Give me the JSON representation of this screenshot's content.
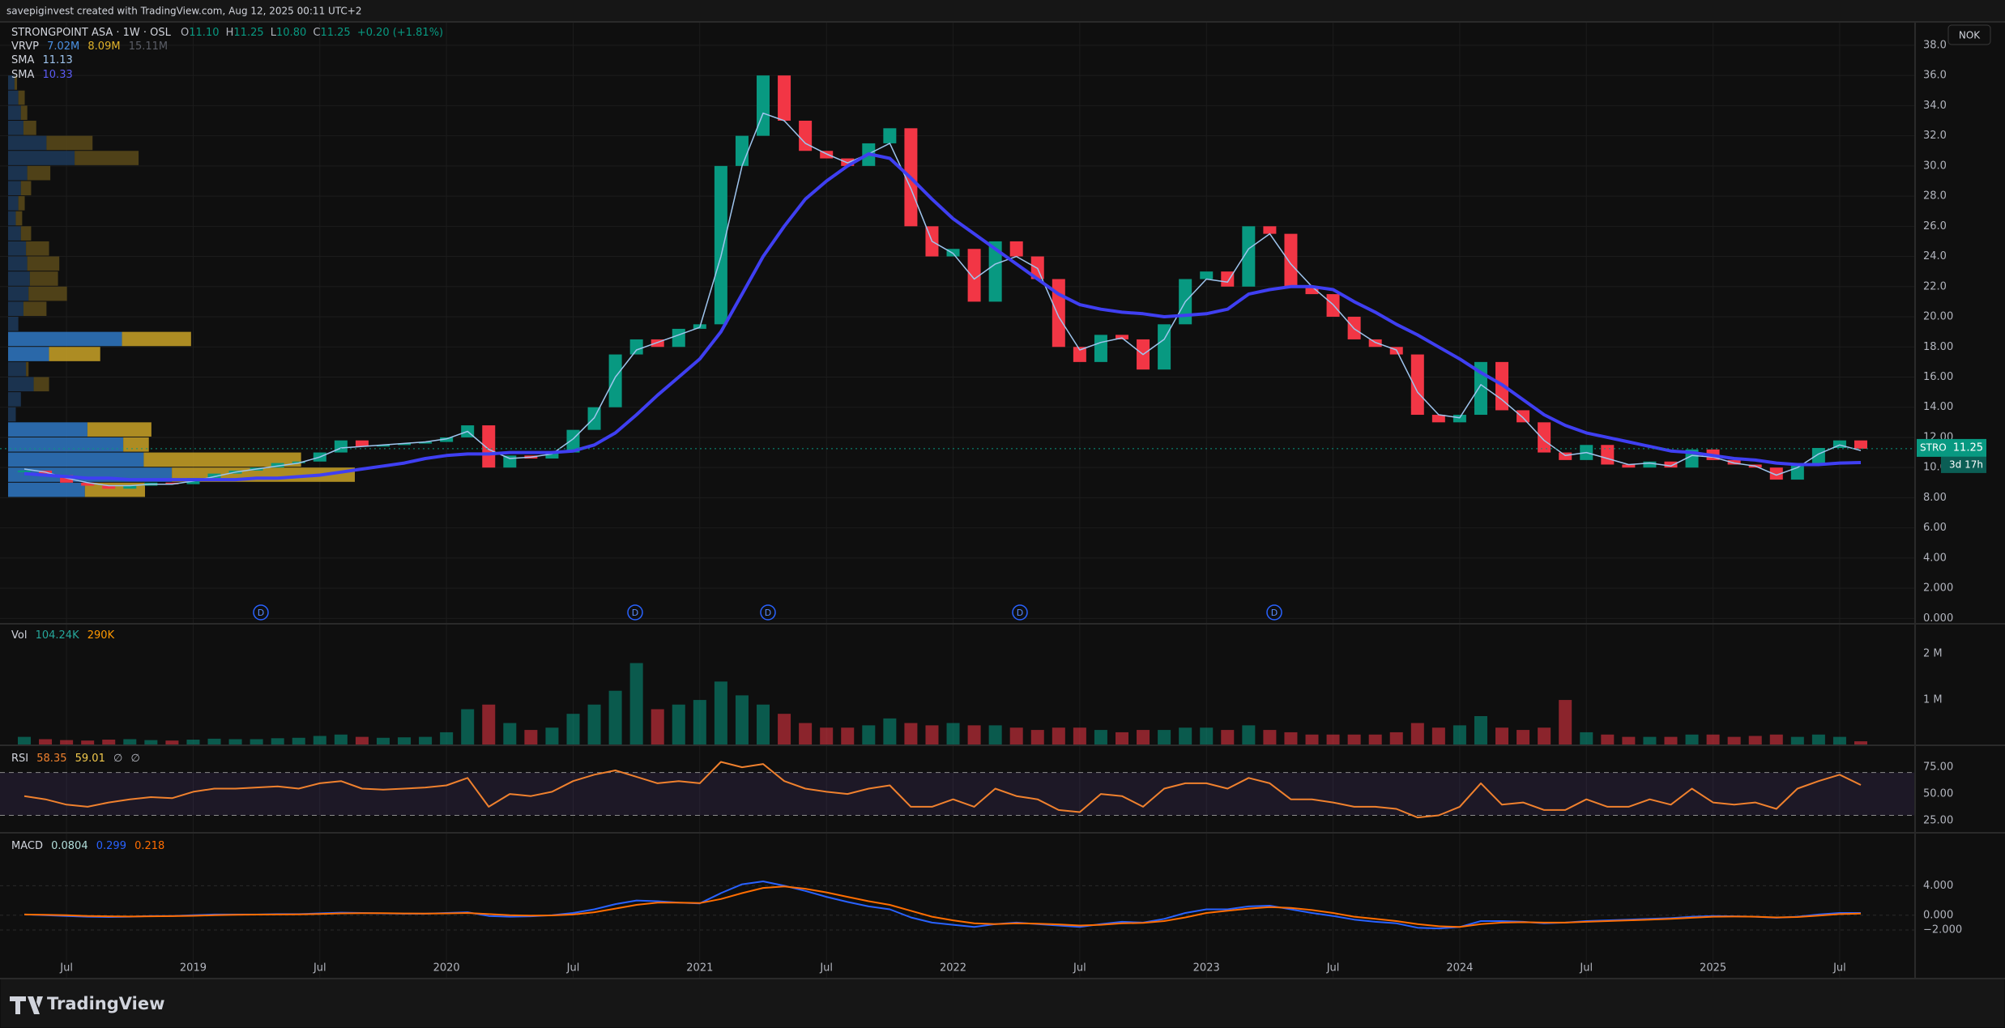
{
  "header": {
    "caption": "savepiginvest created with TradingView.com, Aug 12, 2025 00:11 UTC+2",
    "currency": "NOK"
  },
  "footer": {
    "brand": "TradingView"
  },
  "chart_data": [
    {
      "type": "candlestick",
      "title": "STRONGPOINT ASA · 1W · OSL",
      "symbol": "STRO",
      "countdown": "3d 17h",
      "ohlc": [
        {
          "label": "O",
          "value": "11.10"
        },
        {
          "label": "H",
          "value": "11.25"
        },
        {
          "label": "L",
          "value": "10.80"
        },
        {
          "label": "C",
          "value": "11.25"
        }
      ],
      "change": "+0.20 (+1.81%)",
      "up_color": "#089981",
      "down_color": "#f23645",
      "grid": true,
      "x": [
        "2018-05",
        "2018-06",
        "2018-07",
        "2018-08",
        "2018-09",
        "2018-10",
        "2018-11",
        "2018-12",
        "2019-01",
        "2019-02",
        "2019-03",
        "2019-04",
        "2019-05",
        "2019-06",
        "2019-07",
        "2019-08",
        "2019-09",
        "2019-10",
        "2019-11",
        "2019-12",
        "2020-01",
        "2020-02",
        "2020-03",
        "2020-04",
        "2020-05",
        "2020-06",
        "2020-07",
        "2020-08",
        "2020-09",
        "2020-10",
        "2020-11",
        "2020-12",
        "2021-01",
        "2021-02",
        "2021-03",
        "2021-04",
        "2021-05",
        "2021-06",
        "2021-07",
        "2021-08",
        "2021-09",
        "2021-10",
        "2021-11",
        "2021-12",
        "2022-01",
        "2022-02",
        "2022-03",
        "2022-04",
        "2022-05",
        "2022-06",
        "2022-07",
        "2022-08",
        "2022-09",
        "2022-10",
        "2022-11",
        "2022-12",
        "2023-01",
        "2023-02",
        "2023-03",
        "2023-04",
        "2023-05",
        "2023-06",
        "2023-07",
        "2023-08",
        "2023-09",
        "2023-10",
        "2023-11",
        "2023-12",
        "2024-01",
        "2024-02",
        "2024-03",
        "2024-04",
        "2024-05",
        "2024-06",
        "2024-07",
        "2024-08",
        "2024-09",
        "2024-10",
        "2024-11",
        "2024-12",
        "2025-01",
        "2025-02",
        "2025-03",
        "2025-04",
        "2025-05",
        "2025-06",
        "2025-07",
        "2025-08"
      ],
      "values": [
        9.8,
        9.5,
        9.0,
        8.8,
        8.6,
        8.8,
        9.0,
        8.9,
        9.3,
        9.6,
        9.8,
        10.0,
        10.3,
        10.4,
        11.0,
        11.8,
        11.4,
        11.5,
        11.6,
        11.7,
        12.0,
        12.8,
        10.0,
        10.8,
        10.6,
        11.0,
        12.5,
        14.0,
        17.5,
        18.5,
        18.0,
        19.2,
        19.5,
        30.0,
        32.0,
        36.0,
        33.0,
        31.0,
        30.5,
        30.0,
        31.5,
        32.5,
        26.0,
        24.0,
        24.5,
        21.0,
        25.0,
        24.0,
        22.5,
        18.0,
        17.0,
        18.8,
        18.5,
        16.5,
        19.5,
        22.5,
        23.0,
        22.0,
        26.0,
        25.5,
        22.0,
        21.5,
        20.0,
        18.5,
        18.0,
        17.5,
        13.5,
        13.0,
        13.5,
        17.0,
        13.8,
        13.0,
        11.0,
        10.5,
        11.5,
        10.2,
        10.0,
        10.4,
        10.0,
        11.2,
        10.5,
        10.2,
        10.0,
        9.2,
        10.3,
        11.3,
        11.8,
        11.25
      ],
      "series": [
        {
          "name": "SMA",
          "color": "#9fc5ee",
          "width": 1.5,
          "values": [
            9.9,
            9.7,
            9.3,
            9.0,
            8.8,
            8.8,
            8.9,
            8.9,
            9.1,
            9.4,
            9.7,
            9.9,
            10.1,
            10.3,
            10.7,
            11.3,
            11.4,
            11.5,
            11.6,
            11.7,
            11.9,
            12.4,
            11.2,
            10.6,
            10.7,
            10.9,
            11.9,
            13.3,
            16.0,
            17.8,
            18.3,
            18.8,
            19.3,
            24.0,
            30.0,
            33.5,
            33.0,
            31.5,
            30.8,
            30.2,
            30.8,
            31.5,
            28.5,
            25.0,
            24.2,
            22.5,
            23.5,
            24.0,
            23.2,
            20.0,
            17.8,
            18.3,
            18.6,
            17.5,
            18.5,
            21.0,
            22.5,
            22.3,
            24.5,
            25.5,
            23.5,
            22.0,
            20.8,
            19.2,
            18.3,
            17.8,
            15.0,
            13.5,
            13.3,
            15.5,
            14.5,
            13.3,
            11.8,
            10.8,
            11.0,
            10.6,
            10.2,
            10.3,
            10.1,
            10.8,
            10.7,
            10.3,
            10.1,
            9.5,
            10.0,
            10.9,
            11.5,
            11.13
          ]
        },
        {
          "name": "SMA",
          "color": "#3f3ff2",
          "width": 4,
          "values": [
            9.6,
            9.5,
            9.4,
            9.3,
            9.3,
            9.2,
            9.2,
            9.2,
            9.2,
            9.2,
            9.2,
            9.3,
            9.3,
            9.4,
            9.5,
            9.7,
            9.9,
            10.1,
            10.3,
            10.6,
            10.8,
            10.9,
            10.9,
            11.0,
            11.0,
            11.0,
            11.1,
            11.5,
            12.3,
            13.5,
            14.8,
            16.0,
            17.2,
            19.0,
            21.5,
            24.0,
            26.0,
            27.8,
            29.0,
            30.0,
            30.8,
            30.5,
            29.2,
            27.8,
            26.5,
            25.5,
            24.5,
            23.5,
            22.5,
            21.5,
            20.8,
            20.5,
            20.3,
            20.2,
            20.0,
            20.1,
            20.2,
            20.5,
            21.5,
            21.8,
            22.0,
            22.0,
            21.8,
            21.0,
            20.3,
            19.5,
            18.8,
            18.0,
            17.2,
            16.3,
            15.5,
            14.5,
            13.5,
            12.8,
            12.3,
            12.0,
            11.7,
            11.4,
            11.1,
            11.0,
            10.8,
            10.6,
            10.5,
            10.3,
            10.2,
            10.2,
            10.3,
            10.33
          ]
        }
      ],
      "ylim": [
        -0.25,
        39.5
      ],
      "yticks": [
        {
          "value": 38,
          "label": "38.0"
        },
        {
          "value": 36,
          "label": "36.0"
        },
        {
          "value": 34,
          "label": "34.0"
        },
        {
          "value": 32,
          "label": "32.0"
        },
        {
          "value": 30,
          "label": "30.0"
        },
        {
          "value": 28,
          "label": "28.0"
        },
        {
          "value": 26,
          "label": "26.0"
        },
        {
          "value": 24,
          "label": "24.0"
        },
        {
          "value": 22,
          "label": "22.0"
        },
        {
          "value": 20,
          "label": "20.00"
        },
        {
          "value": 18,
          "label": "18.00"
        },
        {
          "value": 16,
          "label": "16.00"
        },
        {
          "value": 14,
          "label": "14.00"
        },
        {
          "value": 12,
          "label": "12.00"
        },
        {
          "value": 10,
          "label": "10.00"
        },
        {
          "value": 8,
          "label": "8.00"
        },
        {
          "value": 6,
          "label": "6.00"
        },
        {
          "value": 4,
          "label": "4.00"
        },
        {
          "value": 2,
          "label": "2.000"
        },
        {
          "value": 0,
          "label": "0.000"
        }
      ],
      "xticks": [
        {
          "value": "2018-07",
          "label": "Jul"
        },
        {
          "value": "2019-01",
          "label": "2019"
        },
        {
          "value": "2019-07",
          "label": "Jul"
        },
        {
          "value": "2020-01",
          "label": "2020"
        },
        {
          "value": "2020-07",
          "label": "Jul"
        },
        {
          "value": "2021-01",
          "label": "2021"
        },
        {
          "value": "2021-07",
          "label": "Jul"
        },
        {
          "value": "2022-01",
          "label": "2022"
        },
        {
          "value": "2022-07",
          "label": "Jul"
        },
        {
          "value": "2023-01",
          "label": "2023"
        },
        {
          "value": "2023-07",
          "label": "Jul"
        },
        {
          "value": "2024-01",
          "label": "2024"
        },
        {
          "value": "2024-07",
          "label": "Jul"
        },
        {
          "value": "2025-01",
          "label": "2025"
        },
        {
          "value": "2025-07",
          "label": "Jul"
        }
      ],
      "dividends": [
        "D",
        "D",
        "D",
        "D",
        "D"
      ],
      "volume_profile": {
        "name": "VRVP",
        "totals": [
          "7.02M",
          "8.09M",
          "15.11M"
        ],
        "up_color": "#2f78c4",
        "down_color": "#c9a227",
        "up_dim": "#1d3a5a",
        "down_dim": "#5a4a1a",
        "prices": [
          8,
          9,
          10,
          11,
          12,
          13,
          14,
          15,
          16,
          17,
          18,
          19,
          20,
          21,
          22,
          23,
          24,
          25,
          26,
          27,
          28,
          29,
          30,
          31,
          32,
          33,
          34,
          35
        ],
        "up": [
          480,
          1024,
          848,
          720,
          496,
          48,
          80,
          160,
          112,
          256,
          712,
          64,
          96,
          128,
          136,
          120,
          112,
          80,
          48,
          64,
          80,
          120,
          416,
          240,
          96,
          80,
          64,
          40
        ],
        "down": [
          376,
          1144,
          984,
          160,
          400,
          0,
          0,
          96,
          16,
          320,
          432,
          0,
          144,
          240,
          176,
          200,
          144,
          64,
          40,
          40,
          64,
          144,
          400,
          288,
          80,
          40,
          40,
          16
        ],
        "highlight": [
          true,
          true,
          true,
          true,
          true,
          false,
          false,
          false,
          false,
          true,
          true,
          false,
          false,
          false,
          false,
          false,
          false,
          false,
          false,
          false,
          false,
          false,
          false,
          false,
          false,
          false,
          false,
          false
        ]
      }
    },
    {
      "type": "bar",
      "name": "Vol",
      "legend_values": [
        "104.24K",
        "290K"
      ],
      "values": [
        200000,
        150000,
        130000,
        120000,
        140000,
        150000,
        130000,
        120000,
        140000,
        160000,
        150000,
        150000,
        170000,
        180000,
        220000,
        250000,
        200000,
        180000,
        190000,
        200000,
        300000,
        800000,
        900000,
        500000,
        350000,
        400000,
        700000,
        900000,
        1200000,
        1800000,
        800000,
        900000,
        1000000,
        1400000,
        1100000,
        900000,
        700000,
        500000,
        400000,
        400000,
        450000,
        600000,
        500000,
        450000,
        500000,
        450000,
        450000,
        400000,
        350000,
        400000,
        400000,
        350000,
        300000,
        350000,
        350000,
        400000,
        400000,
        350000,
        450000,
        350000,
        300000,
        250000,
        250000,
        250000,
        250000,
        300000,
        500000,
        400000,
        450000,
        650000,
        400000,
        350000,
        400000,
        1000000,
        300000,
        250000,
        200000,
        200000,
        200000,
        250000,
        250000,
        200000,
        220000,
        250000,
        200000,
        250000,
        200000,
        104240
      ],
      "ylim": [
        0,
        2600000
      ],
      "yticks": [
        {
          "value": 2000000,
          "label": "2 M"
        },
        {
          "value": 1000000,
          "label": "1 M"
        }
      ]
    },
    {
      "type": "line",
      "ma_value": 59.01,
      "extra": [
        "∅",
        "∅"
      ],
      "band": [
        30,
        70
      ],
      "band_color": "#7e57c2",
      "series": [
        {
          "name": "RSI",
          "color": "#f0812e",
          "values": [
            48,
            45,
            40,
            38,
            42,
            45,
            47,
            46,
            52,
            55,
            55,
            56,
            57,
            55,
            60,
            62,
            55,
            54,
            55,
            56,
            58,
            65,
            38,
            50,
            48,
            52,
            62,
            68,
            72,
            66,
            60,
            62,
            60,
            80,
            75,
            78,
            62,
            55,
            52,
            50,
            55,
            58,
            38,
            38,
            45,
            38,
            55,
            48,
            45,
            35,
            33,
            50,
            48,
            38,
            55,
            60,
            60,
            55,
            65,
            60,
            45,
            45,
            42,
            38,
            38,
            36,
            28,
            30,
            38,
            60,
            40,
            42,
            35,
            35,
            45,
            38,
            38,
            45,
            40,
            55,
            42,
            40,
            42,
            36,
            55,
            62,
            68,
            58.35
          ]
        }
      ],
      "ylim": [
        15.2,
        95.5
      ],
      "yticks": [
        {
          "value": 75,
          "label": "75.00"
        },
        {
          "value": 50,
          "label": "50.00"
        },
        {
          "value": 25,
          "label": "25.00"
        }
      ]
    },
    {
      "type": "line",
      "hist_value": 0.0804,
      "grid": true,
      "series": [
        {
          "name": "MACD",
          "color": "#2962ff",
          "values": [
            0.1,
            0,
            -0.1,
            -0.2,
            -0.25,
            -0.2,
            -0.1,
            -0.1,
            0,
            0.1,
            0.1,
            0.1,
            0.15,
            0.15,
            0.25,
            0.35,
            0.3,
            0.25,
            0.2,
            0.2,
            0.3,
            0.4,
            -0.1,
            -0.2,
            -0.15,
            0,
            0.3,
            0.8,
            1.5,
            2.0,
            1.9,
            1.7,
            1.6,
            3.0,
            4.2,
            4.6,
            4.0,
            3.3,
            2.5,
            1.8,
            1.2,
            0.8,
            -0.3,
            -1.0,
            -1.3,
            -1.6,
            -1.2,
            -1.0,
            -1.2,
            -1.4,
            -1.6,
            -1.2,
            -0.9,
            -1.0,
            -0.5,
            0.3,
            0.8,
            0.8,
            1.2,
            1.3,
            0.8,
            0.3,
            -0.1,
            -0.6,
            -0.9,
            -1.1,
            -1.7,
            -1.8,
            -1.6,
            -0.8,
            -0.8,
            -0.9,
            -1.1,
            -1.0,
            -0.8,
            -0.7,
            -0.6,
            -0.5,
            -0.4,
            -0.2,
            -0.1,
            -0.15,
            -0.2,
            -0.35,
            -0.2,
            0.1,
            0.3,
            0.299
          ]
        },
        {
          "color": "#ff6d00",
          "values": [
            0.1,
            0.05,
            0,
            -0.1,
            -0.15,
            -0.18,
            -0.15,
            -0.12,
            -0.08,
            0,
            0.05,
            0.08,
            0.1,
            0.12,
            0.17,
            0.25,
            0.28,
            0.27,
            0.24,
            0.22,
            0.25,
            0.3,
            0.15,
            0,
            -0.05,
            -0.03,
            0.1,
            0.4,
            0.9,
            1.4,
            1.7,
            1.7,
            1.65,
            2.2,
            3.0,
            3.7,
            3.9,
            3.6,
            3.1,
            2.5,
            1.9,
            1.4,
            0.6,
            -0.2,
            -0.7,
            -1.1,
            -1.2,
            -1.1,
            -1.15,
            -1.25,
            -1.4,
            -1.3,
            -1.1,
            -1.05,
            -0.8,
            -0.3,
            0.3,
            0.6,
            0.9,
            1.1,
            1.0,
            0.7,
            0.3,
            -0.2,
            -0.5,
            -0.8,
            -1.2,
            -1.5,
            -1.6,
            -1.2,
            -1.0,
            -0.95,
            -1.0,
            -1.0,
            -0.9,
            -0.8,
            -0.7,
            -0.6,
            -0.5,
            -0.35,
            -0.2,
            -0.18,
            -0.2,
            -0.3,
            -0.25,
            -0.05,
            0.15,
            0.218
          ]
        }
      ],
      "ylim": [
        -8.5,
        11.2
      ],
      "yticks": [
        {
          "value": 4,
          "label": "4.000"
        },
        {
          "value": 0,
          "label": "0.000"
        },
        {
          "value": -2,
          "label": "−2.000"
        }
      ]
    }
  ]
}
